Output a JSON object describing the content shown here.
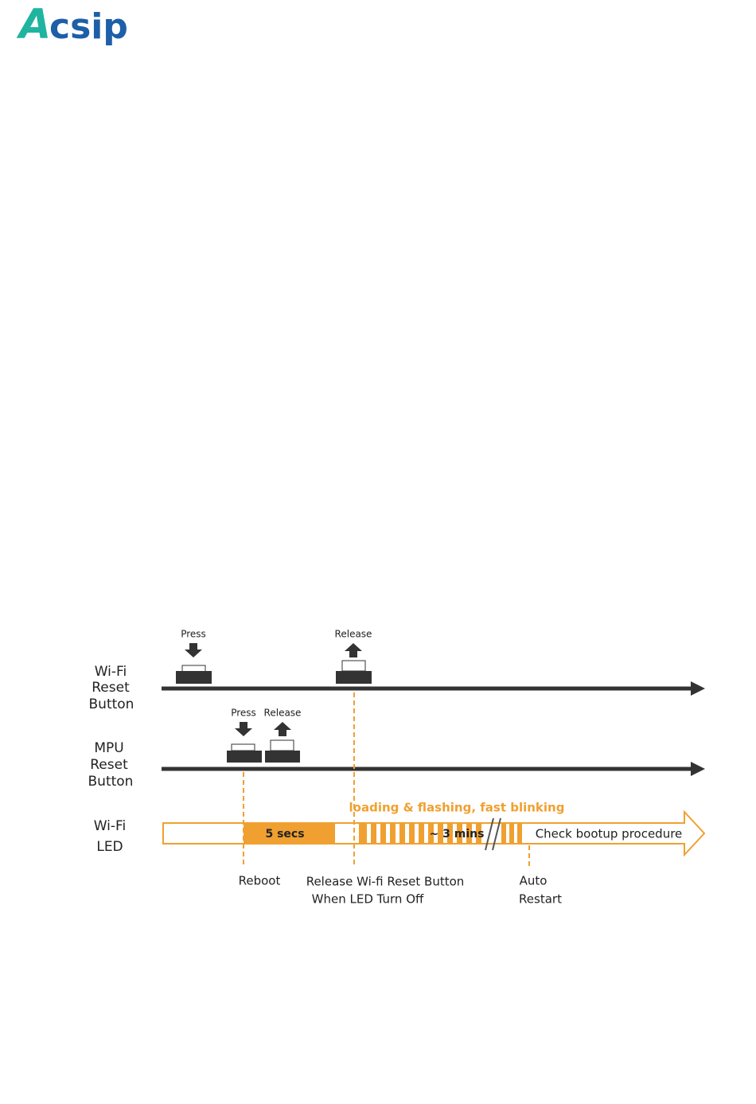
{
  "header": {
    "logo_mark": "A",
    "logo_text": "csip"
  },
  "diagram": {
    "wifi_button": {
      "label": [
        "Wi-Fi",
        "Reset",
        "Button"
      ],
      "press": "Press",
      "release": "Release"
    },
    "mpu_button": {
      "label": [
        "MPU",
        "Reset",
        "Button"
      ],
      "press": "Press",
      "release": "Release"
    },
    "wifi_led": {
      "label": [
        "Wi-Fi",
        "LED"
      ],
      "phase_title": "loading & flashing, fast blinking",
      "hold": "5 secs",
      "duration": "~ 3 mins",
      "end": "Check bootup procedure"
    },
    "events": {
      "reboot": "Reboot",
      "release_line1": "Release Wi-fi Reset Button",
      "release_line2": "When LED Turn Off",
      "auto_line1": "Auto",
      "auto_line2": "Restart"
    }
  }
}
